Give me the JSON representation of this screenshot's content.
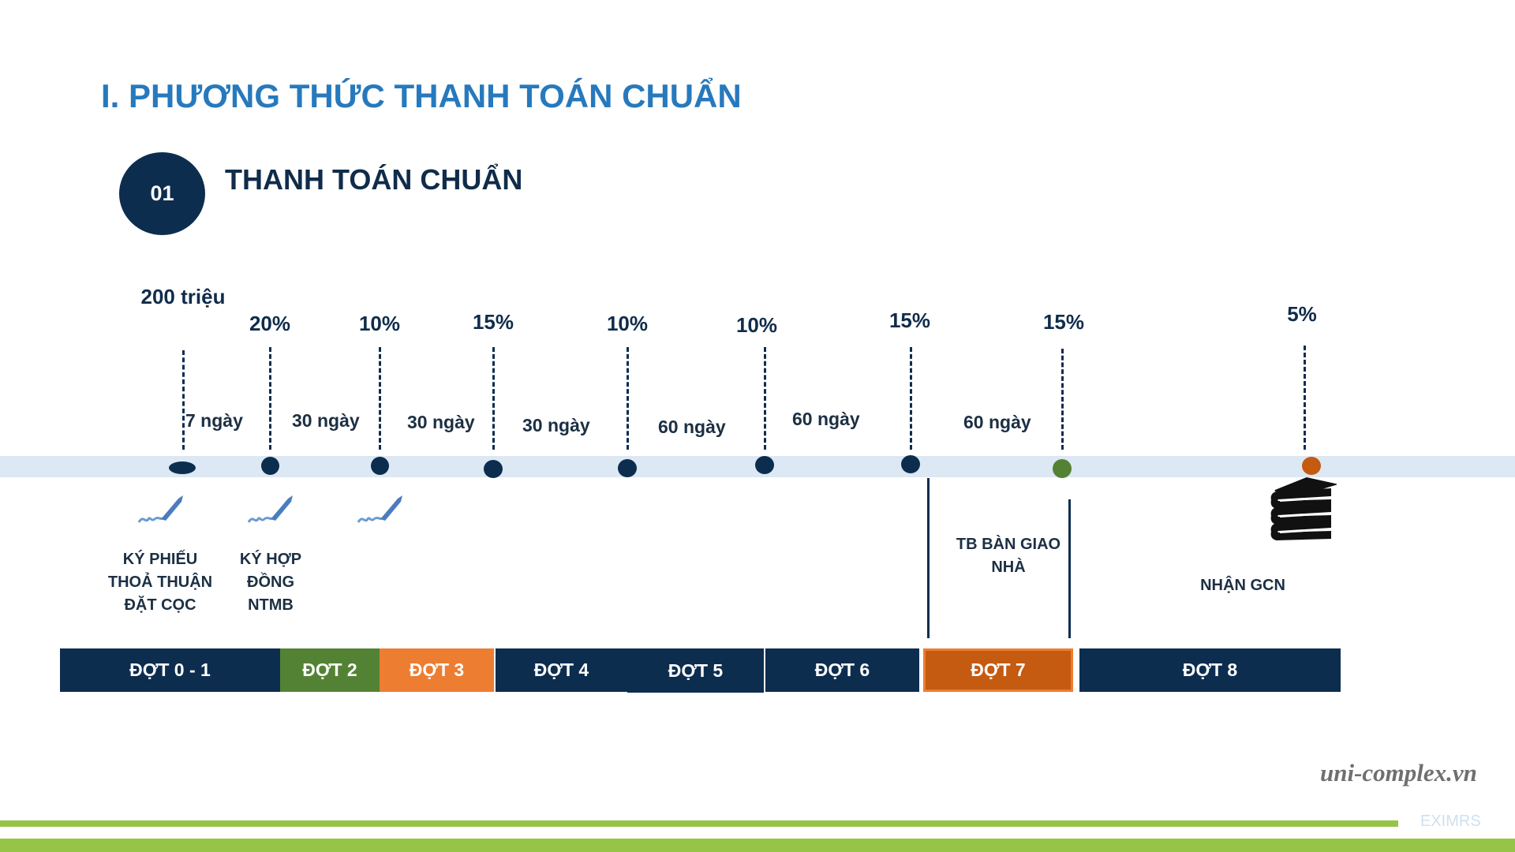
{
  "title": "I. PHƯƠNG THỨC THANH TOÁN CHUẨN",
  "section": {
    "number": "01",
    "title": "THANH TOÁN CHUẨN"
  },
  "milestones": {
    "m0": {
      "percent": "200 triệu",
      "dot_color": "#0d2d4f"
    },
    "m1": {
      "percent": "20%",
      "dot_color": "#0d2d4f"
    },
    "m2": {
      "percent": "10%",
      "dot_color": "#0d2d4f"
    },
    "m3": {
      "percent": "15%",
      "dot_color": "#0d2d4f"
    },
    "m4": {
      "percent": "10%",
      "dot_color": "#0d2d4f"
    },
    "m5": {
      "percent": "10%",
      "dot_color": "#0d2d4f"
    },
    "m6": {
      "percent": "15%",
      "dot_color": "#0d2d4f"
    },
    "m7": {
      "percent": "15%",
      "dot_color": "#548235"
    },
    "m8": {
      "percent": "5%",
      "dot_color": "#c55a11"
    }
  },
  "intervals": {
    "i1": "7 ngày",
    "i2": "30 ngày",
    "i3": "30 ngày",
    "i4": "30 ngày",
    "i5": "60 ngày",
    "i6": "60 ngày",
    "i7": "60 ngày"
  },
  "events": {
    "e0": {
      "label": "KÝ PHIẾU THOẢ THUẬN ĐẶT CỌC",
      "icon": "signature-pen-icon"
    },
    "e1": {
      "label": "KÝ HỢP ĐỒNG NTMB",
      "icon": "signature-pen-icon"
    },
    "e2": {
      "label": "",
      "icon": "signature-pen-icon"
    },
    "e3": {
      "label": "TB BÀN GIAO NHÀ"
    },
    "e4": {
      "label": "NHẬN GCN",
      "icon": "books-stack-icon"
    }
  },
  "installments": {
    "d01": {
      "label": "ĐỢT 0 - 1",
      "color": "#0d2d4f"
    },
    "d2": {
      "label": "ĐỢT 2",
      "color": "#548235"
    },
    "d3": {
      "label": "ĐỢT 3",
      "color": "#ed7d31"
    },
    "d4": {
      "label": "ĐỢT 4",
      "color": "#0d2d4f"
    },
    "d5": {
      "label": "ĐỢT 5",
      "color": "#0d2d4f"
    },
    "d6": {
      "label": "ĐỢT 6",
      "color": "#0d2d4f"
    },
    "d7": {
      "label": "ĐỢT 7",
      "color": "#c55a11"
    },
    "d8": {
      "label": "ĐỢT 8",
      "color": "#0d2d4f"
    }
  },
  "watermark": "uni-complex.vn",
  "footer_tag": "EXIMRS",
  "colors": {
    "title_blue": "#2779bd",
    "navy": "#0d2d4f",
    "green": "#96c447",
    "band": "#dce8f4"
  }
}
